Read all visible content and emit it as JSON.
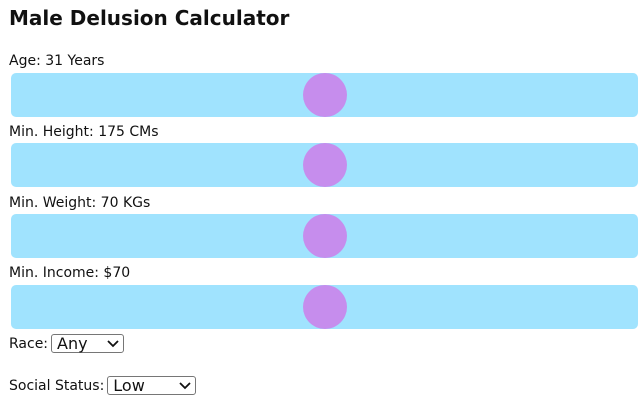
{
  "title": "Male Delusion Calculator",
  "sliders": [
    {
      "label": "Age: 31 Years",
      "value_fraction": 0.5
    },
    {
      "label": "Min. Height: 175 CMs",
      "value_fraction": 0.5
    },
    {
      "label": "Min. Weight: 70 KGs",
      "value_fraction": 0.5
    },
    {
      "label": "Min. Income: $70",
      "value_fraction": 0.5
    }
  ],
  "race": {
    "label": "Race:",
    "selected": "Any"
  },
  "social_status": {
    "label": "Social Status:",
    "selected": "Low"
  },
  "colors": {
    "track": "#a0e3fe",
    "thumb": "#c68ded",
    "text": "#111111"
  },
  "icons": {
    "dropdown": "chevron-down-icon"
  }
}
